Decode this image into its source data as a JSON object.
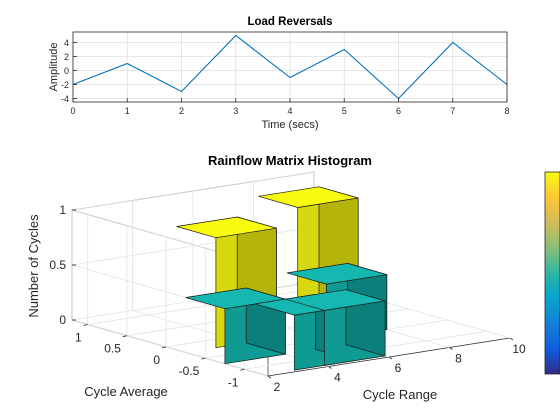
{
  "chart_data": [
    {
      "type": "line",
      "title": "Load Reversals",
      "xlabel": "Time (secs)",
      "ylabel": "Amplitude",
      "xlim": [
        0,
        8
      ],
      "ylim": [
        -4.5,
        5.5
      ],
      "xticks": [
        "0",
        "1",
        "2",
        "3",
        "4",
        "5",
        "6",
        "7",
        "8"
      ],
      "yticks": [
        "-4",
        "-2",
        "0",
        "2",
        "4"
      ],
      "grid": true,
      "series": [
        {
          "color": "#0072bd",
          "x": [
            0,
            1,
            2,
            3,
            4,
            5,
            6,
            7,
            8
          ],
          "y": [
            -2,
            1,
            -3,
            5,
            -1,
            3,
            -4,
            4,
            -2
          ]
        }
      ]
    },
    {
      "type": "bar3d",
      "title": "Rainflow Matrix Histogram",
      "xlabel": "Cycle Range",
      "ylabel": "Cycle Average",
      "zlabel": "Number of Cycles",
      "xlim": [
        2,
        10
      ],
      "ylim": [
        -1.3,
        1.2
      ],
      "zlim": [
        0,
        1
      ],
      "xticks": [
        "2",
        "4",
        "6",
        "8",
        "10"
      ],
      "yticks": [
        "-1",
        "-0.5",
        "0",
        "0.5",
        "1"
      ],
      "zticks": [
        "0",
        "0.5",
        "1"
      ],
      "grid": true,
      "colormap": "parula",
      "colorbar": "right",
      "bars": [
        {
          "range": 8,
          "average": 0.5,
          "count": 1
        },
        {
          "range": 4,
          "average": 0.0,
          "count": 1
        },
        {
          "range": 7,
          "average": -0.25,
          "count": 0.5
        },
        {
          "range": 3,
          "average": -0.5,
          "count": 0.5
        },
        {
          "range": 4,
          "average": -1.0,
          "count": 0.5
        },
        {
          "range": 5,
          "average": -1.0,
          "count": 0.5
        }
      ]
    }
  ]
}
